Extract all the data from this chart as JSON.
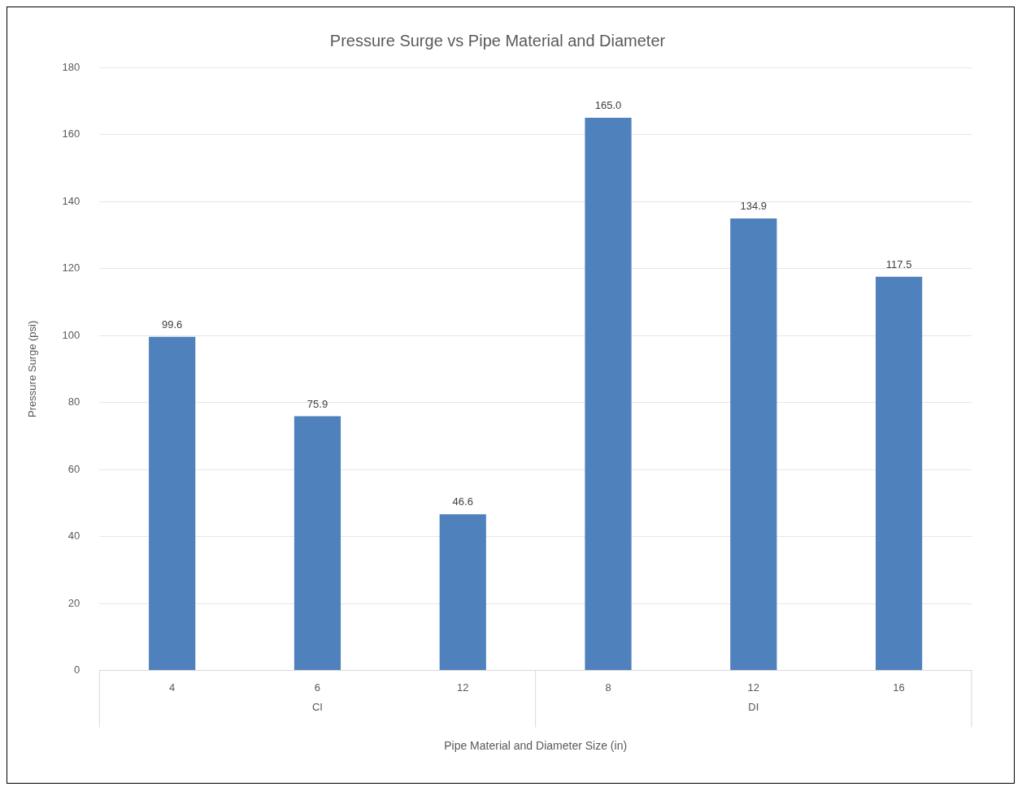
{
  "chart_data": {
    "type": "bar",
    "title": "Pressure Surge vs Pipe Material and Diameter",
    "xlabel": "Pipe Material and Diameter Size (in)",
    "ylabel": "Pressure Surge (psi)",
    "categories": [
      "4",
      "6",
      "12",
      "8",
      "12",
      "16"
    ],
    "values": [
      99.6,
      75.9,
      46.6,
      165.0,
      134.9,
      117.5
    ],
    "value_labels": [
      "99.6",
      "75.9",
      "46.6",
      "165.0",
      "134.9",
      "117.5"
    ],
    "color": "#4f81bd",
    "ylim": [
      0,
      180
    ],
    "yticks": [
      0,
      20,
      40,
      60,
      80,
      100,
      120,
      140,
      160,
      180
    ],
    "grid": "y",
    "legend": false,
    "annotations": [
      "CI",
      "DI"
    ]
  }
}
